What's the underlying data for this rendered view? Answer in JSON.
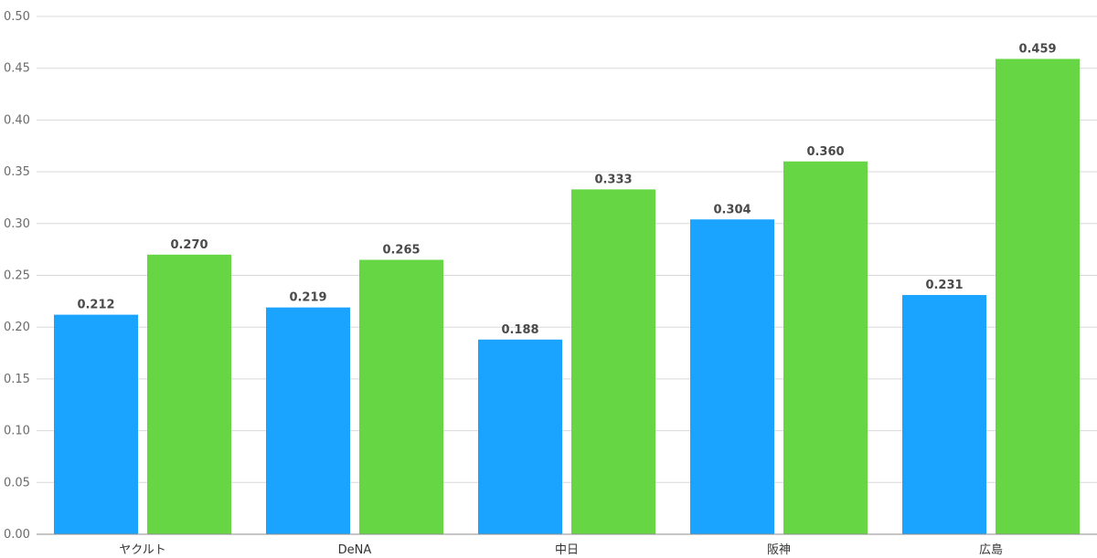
{
  "chart_data": {
    "type": "bar",
    "title": "",
    "xlabel": "",
    "ylabel": "",
    "categories": [
      "ヤクルト",
      "DeNA",
      "中日",
      "阪神",
      "広島"
    ],
    "series": [
      {
        "color": "#1aa3ff",
        "values": [
          0.212,
          0.219,
          0.188,
          0.304,
          0.231
        ],
        "labels": [
          "0.212",
          "0.219",
          "0.188",
          "0.304",
          "0.231"
        ]
      },
      {
        "color": "#66d645",
        "values": [
          0.27,
          0.265,
          0.333,
          0.36,
          0.459
        ],
        "labels": [
          "0.270",
          "0.265",
          "0.333",
          "0.360",
          "0.459"
        ]
      }
    ],
    "ylim": [
      0,
      0.5
    ],
    "yticks": [
      0,
      0.05,
      0.1,
      0.15,
      0.2,
      0.25,
      0.3,
      0.35,
      0.4,
      0.45,
      0.5
    ],
    "ytick_labels": [
      "0.00",
      "0.05",
      "0.10",
      "0.15",
      "0.20",
      "0.25",
      "0.30",
      "0.35",
      "0.40",
      "0.45",
      "0.50"
    ],
    "grid": true,
    "legend": "none"
  }
}
